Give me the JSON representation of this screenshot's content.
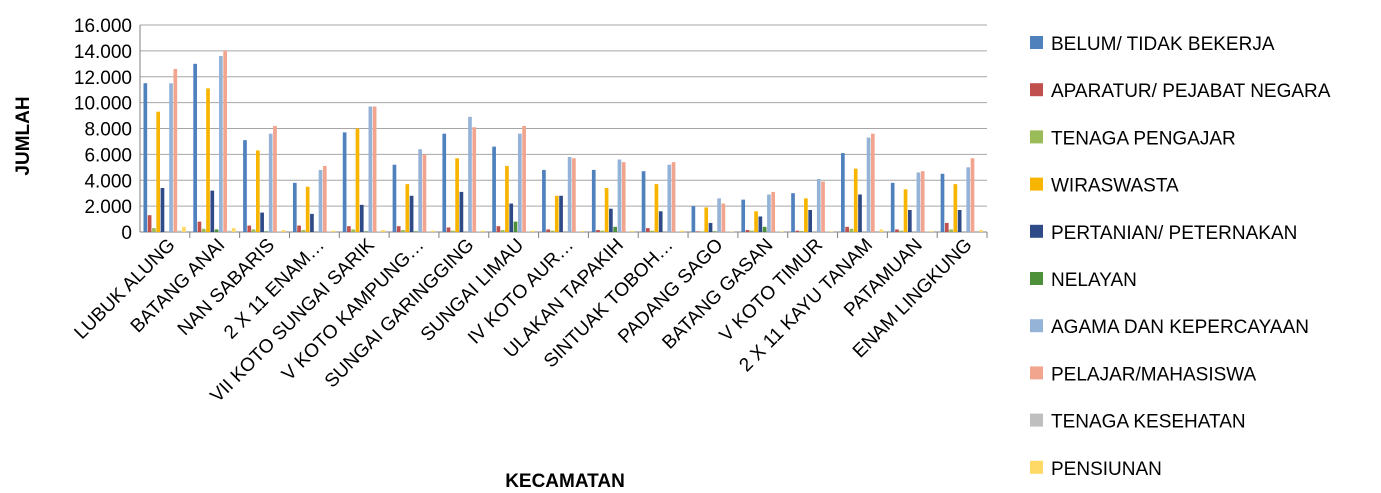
{
  "chart_data": {
    "type": "bar",
    "title": "",
    "xlabel": "KECAMATAN",
    "ylabel": "JUMLAH",
    "ylim": [
      0,
      16000
    ],
    "yticks": [
      "0",
      "2.000",
      "4.000",
      "6.000",
      "8.000",
      "10.000",
      "12.000",
      "14.000",
      "16.000"
    ],
    "grid": true,
    "legend_position": "right",
    "categories": [
      "LUBUK ALUNG",
      "BATANG ANAI",
      "NAN SABARIS",
      "2 X 11 ENAM…",
      "VII KOTO SUNGAI SARIK",
      "V KOTO KAMPUNG…",
      "SUNGAI GARINGGING",
      "SUNGAI LIMAU",
      "IV KOTO AUR…",
      "ULAKAN TAPAKIH",
      "SINTUAK TOBOH…",
      "PADANG SAGO",
      "BATANG GASAN",
      "V KOTO TIMUR",
      "2 X 11 KAYU TANAM",
      "PATAMUAN",
      "ENAM LINGKUNG"
    ],
    "series": [
      {
        "name": "BELUM/ TIDAK BEKERJA",
        "color": "#4F81BD",
        "values": [
          11500,
          13000,
          7100,
          3800,
          7700,
          5200,
          7600,
          6600,
          4800,
          4800,
          4700,
          2000,
          2500,
          3000,
          6100,
          3800,
          4500
        ]
      },
      {
        "name": "APARATUR/ PEJABAT NEGARA",
        "color": "#C0504D",
        "values": [
          1300,
          800,
          500,
          500,
          450,
          450,
          350,
          450,
          200,
          150,
          300,
          50,
          150,
          100,
          400,
          200,
          700
        ]
      },
      {
        "name": "TENAGA PENGAJAR",
        "color": "#9BBB59",
        "values": [
          300,
          250,
          200,
          150,
          200,
          150,
          100,
          150,
          100,
          100,
          100,
          50,
          100,
          80,
          250,
          100,
          200
        ]
      },
      {
        "name": "WIRASWASTA",
        "color": "#F7B500",
        "values": [
          9300,
          11100,
          6300,
          3500,
          8000,
          3700,
          5700,
          5100,
          2800,
          3400,
          3700,
          1900,
          1600,
          2600,
          4900,
          3300,
          3700
        ]
      },
      {
        "name": "PERTANIAN/ PETERNAKAN",
        "color": "#2E4A87",
        "values": [
          3400,
          3200,
          1500,
          1400,
          2100,
          2800,
          3100,
          2200,
          2800,
          1800,
          1600,
          700,
          1200,
          1700,
          2900,
          1700,
          1700
        ]
      },
      {
        "name": "NELAYAN",
        "color": "#4E8F3A",
        "values": [
          0,
          200,
          50,
          0,
          50,
          50,
          0,
          800,
          0,
          400,
          0,
          50,
          400,
          0,
          0,
          0,
          0
        ]
      },
      {
        "name": "AGAMA DAN KEPERCAYAAN",
        "color": "#95B3D7",
        "values": [
          11500,
          13600,
          7600,
          4800,
          9700,
          6400,
          8900,
          7600,
          5800,
          5600,
          5200,
          2600,
          2900,
          4100,
          7300,
          4600,
          5000
        ]
      },
      {
        "name": "PELAJAR/MAHASISWA",
        "color": "#F2A58E",
        "values": [
          12600,
          14000,
          8200,
          5100,
          9700,
          6000,
          8100,
          8200,
          5700,
          5400,
          5400,
          2200,
          3100,
          3900,
          7600,
          4700,
          5700
        ]
      },
      {
        "name": "TENAGA KESEHATAN",
        "color": "#BFBFBF",
        "values": [
          100,
          100,
          50,
          50,
          50,
          50,
          50,
          50,
          50,
          50,
          50,
          30,
          30,
          30,
          80,
          30,
          80
        ]
      },
      {
        "name": "PENSIUNAN",
        "color": "#FFD966",
        "values": [
          400,
          300,
          150,
          100,
          150,
          100,
          100,
          100,
          80,
          80,
          100,
          30,
          50,
          50,
          200,
          60,
          150
        ]
      }
    ]
  }
}
